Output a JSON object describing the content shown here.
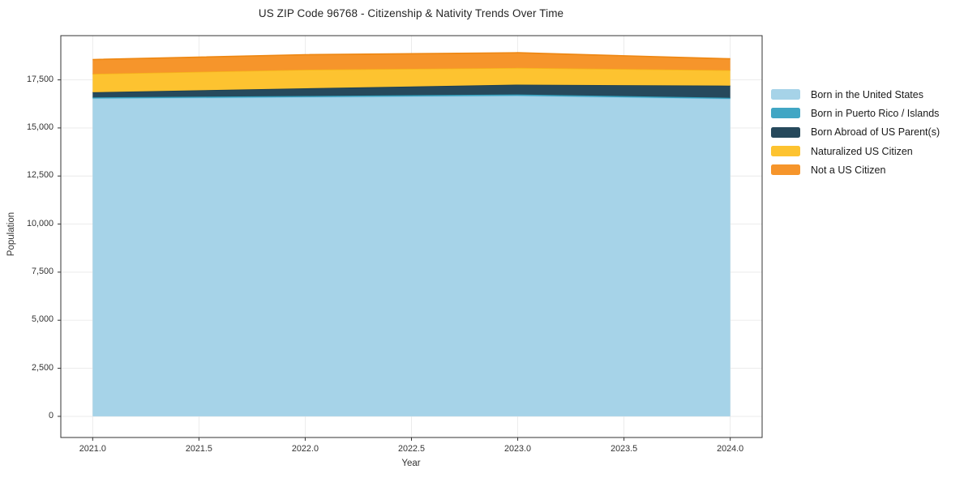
{
  "title": "US ZIP Code 96768 - Citizenship & Nativity Trends Over Time",
  "chart_data": {
    "type": "area",
    "stacked": true,
    "title": "US ZIP Code 96768 - Citizenship & Nativity Trends Over Time",
    "xlabel": "Year",
    "ylabel": "Population",
    "x": [
      2021,
      2022,
      2023,
      2024
    ],
    "series": [
      {
        "name": "Born in the United States",
        "color": "#A6D3E8",
        "edge": "#8FC8E4",
        "values": [
          16530,
          16600,
          16675,
          16515
        ]
      },
      {
        "name": "Born in Puerto Rico / Islands",
        "color": "#41A6C4",
        "edge": "#2F9DB8",
        "values": [
          60,
          60,
          65,
          55
        ]
      },
      {
        "name": "Born Abroad of US Parent(s)",
        "color": "#26495C",
        "edge": "#1C3E50",
        "values": [
          265,
          400,
          510,
          630
        ]
      },
      {
        "name": "Naturalized US Citizen",
        "color": "#FDC330",
        "edge": "#F6B519",
        "values": [
          955,
          965,
          875,
          800
        ]
      },
      {
        "name": "Not a US Citizen",
        "color": "#F6952B",
        "edge": "#EE8712",
        "values": [
          745,
          785,
          785,
          595
        ]
      }
    ],
    "totals": [
      18555,
      18810,
      18910,
      18595
    ],
    "xticks": [
      2021.0,
      2021.5,
      2022.0,
      2022.5,
      2023.0,
      2023.5,
      2024.0
    ],
    "xtick_labels": [
      "2021.0",
      "2021.5",
      "2022.0",
      "2022.5",
      "2023.0",
      "2023.5",
      "2024.0"
    ],
    "yticks": [
      0,
      2500,
      5000,
      7500,
      10000,
      12500,
      15000,
      17500
    ],
    "ytick_labels": [
      "0",
      "2,500",
      "5,000",
      "7,500",
      "10,000",
      "12,500",
      "15,000",
      "17,500"
    ],
    "xlim": [
      2020.85,
      2024.15
    ],
    "ylim": [
      -1100,
      19800
    ],
    "grid": true,
    "grid_color": "#e9e9e9",
    "spine_color": "#333333",
    "legend_position": "right"
  }
}
